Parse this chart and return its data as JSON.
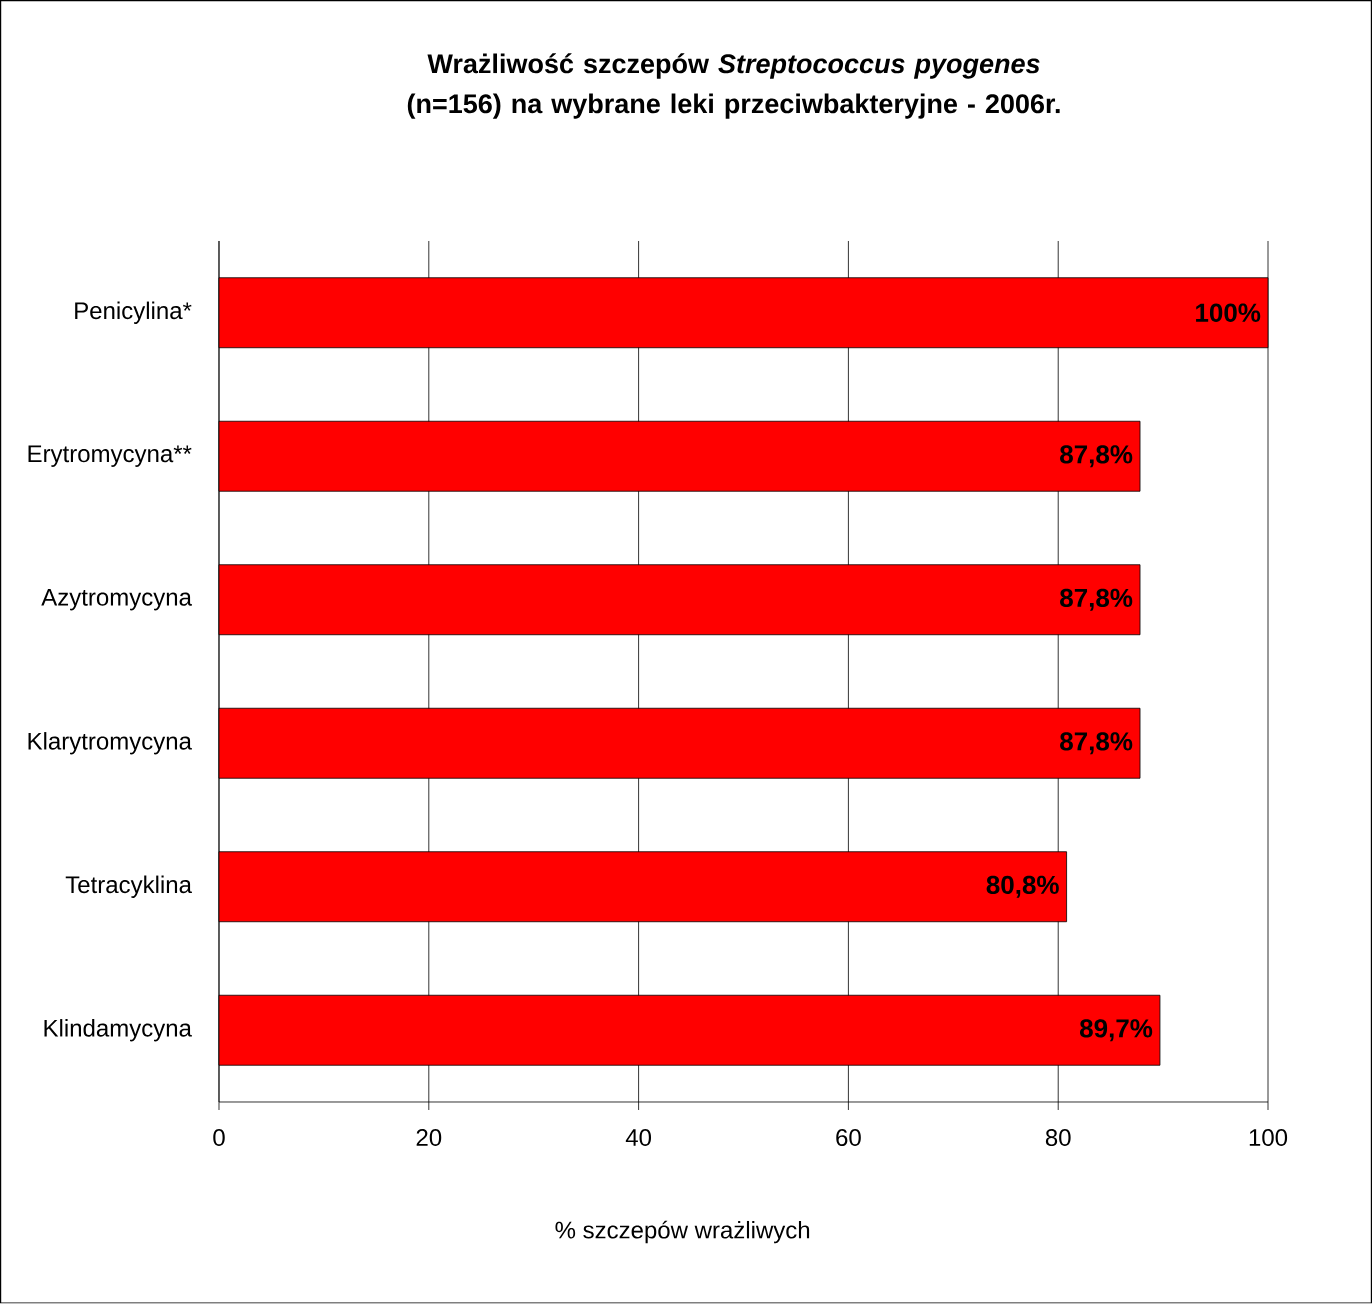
{
  "chart_data": {
    "type": "bar",
    "orientation": "horizontal",
    "title": "**Wrażliwość szczepów *Streptococcus pyogenes* (n=156) na wybrane leki przeciwbakteryjne - 2006r.**",
    "xlabel": "% szczepów wrażliwych",
    "categories": [
      "Penicylina*",
      "Erytromycyna**",
      "Azytromycyna",
      "Klarytromycyna",
      "Tetracyklina",
      "Klindamycyna"
    ],
    "values": [
      100,
      87.8,
      87.8,
      87.8,
      80.8,
      89.7
    ],
    "value_labels": [
      "100%",
      "87,8%",
      "87,8%",
      "87,8%",
      "80,8%",
      "89,7%"
    ],
    "color": "#ff0000",
    "xlim": [
      0,
      100
    ],
    "xticks": [
      0,
      20,
      40,
      60,
      80,
      100
    ],
    "grid": "x"
  }
}
